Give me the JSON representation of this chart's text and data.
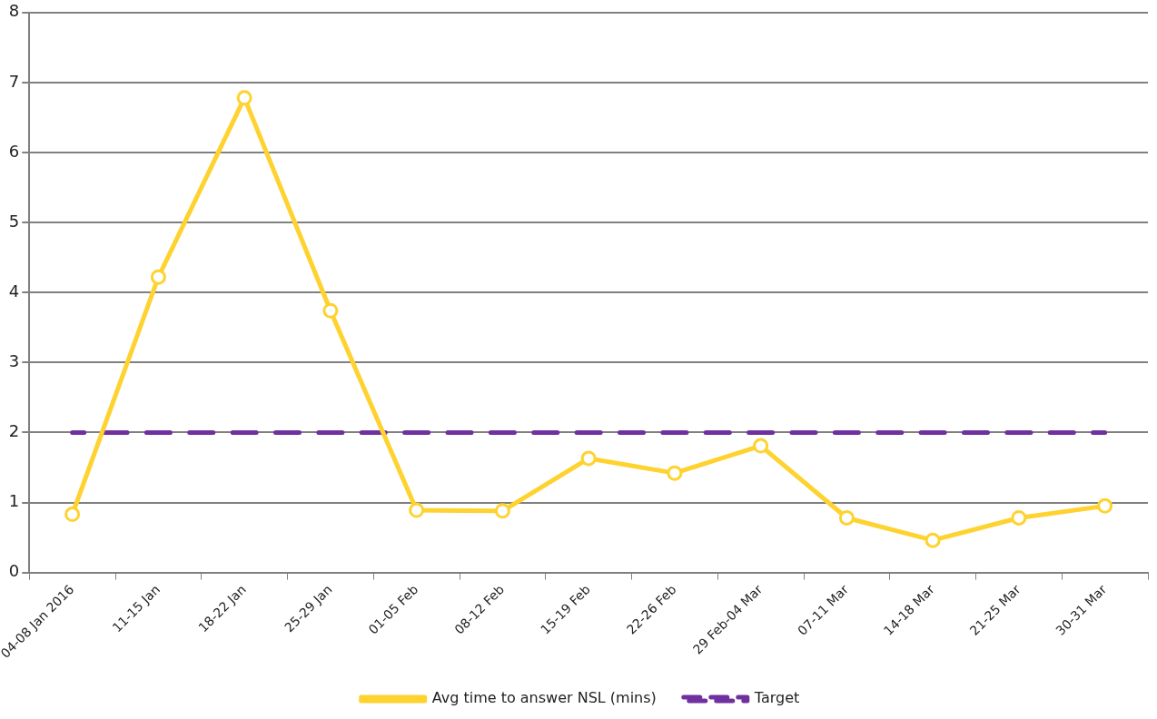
{
  "chart_data": {
    "type": "line",
    "categories": [
      "04-08 Jan 2016",
      "11-15 Jan",
      "18-22 Jan",
      "25-29 Jan",
      "01-05 Feb",
      "08-12 Feb",
      "15-19 Feb",
      "22-26 Feb",
      "29 Feb-04 Mar",
      "07-11 Mar",
      "14-18 Mar",
      "21-25 Mar",
      "30-31 Mar"
    ],
    "series": [
      {
        "name": "Avg time to answer NSL (mins)",
        "color": "#fed22f",
        "marker": "circle",
        "line_style": "solid",
        "values": [
          0.83,
          4.22,
          6.78,
          3.74,
          0.89,
          0.88,
          1.63,
          1.42,
          1.81,
          0.78,
          0.46,
          0.78,
          0.95
        ]
      },
      {
        "name": "Target",
        "color": "#7030a0",
        "marker": "none",
        "line_style": "dashed",
        "values": [
          2,
          2,
          2,
          2,
          2,
          2,
          2,
          2,
          2,
          2,
          2,
          2,
          2
        ]
      }
    ],
    "ylim": [
      0,
      8
    ],
    "yticks": [
      0,
      1,
      2,
      3,
      4,
      5,
      6,
      7,
      8
    ],
    "grid": "y",
    "legend": "bottom"
  }
}
